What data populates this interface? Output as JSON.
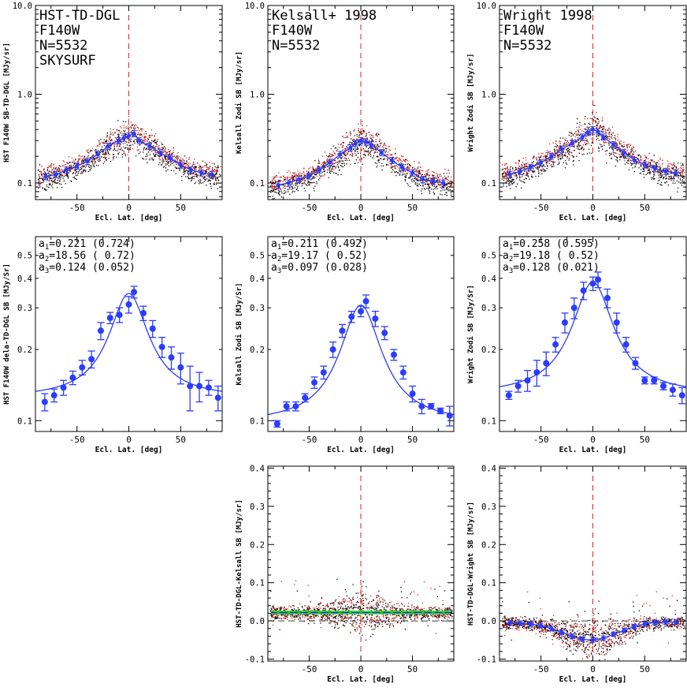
{
  "chart_data": [
    {
      "type": "scatter",
      "yscale": "log",
      "title_lines": [
        "HST-TD-DGL",
        "F140W",
        "N=5532",
        "SKYSURF"
      ],
      "xlabel": "Ecl. Lat. [deg]",
      "ylabel": "HST F140W SB-TD-DGL [MJy/sr]",
      "xlim": [
        -90,
        90
      ],
      "ylim": [
        0.065,
        10
      ],
      "xticks": [
        -50,
        0,
        50
      ],
      "yticks": [
        0.1,
        1.0,
        10.0
      ],
      "ytick_labels": [
        "0.1",
        "1.0",
        "10.0"
      ],
      "binned": {
        "x": [
          -80,
          -70,
          -60,
          -50,
          -40,
          -30,
          -20,
          -10,
          -5,
          0,
          5,
          10,
          20,
          30,
          40,
          50,
          60,
          70,
          80
        ],
        "y": [
          0.118,
          0.125,
          0.14,
          0.155,
          0.175,
          0.21,
          0.26,
          0.3,
          0.32,
          0.34,
          0.36,
          0.3,
          0.26,
          0.22,
          0.19,
          0.16,
          0.14,
          0.13,
          0.125
        ]
      },
      "zero_line": {
        "x": 0
      }
    },
    {
      "type": "scatter",
      "yscale": "log",
      "title_lines": [
        "Kelsall+ 1998",
        "F140W",
        "N=5532"
      ],
      "xlabel": "Ecl. Lat. [deg]",
      "ylabel": "Kelsall Zodi SB [MJy/sr]",
      "xlim": [
        -90,
        90
      ],
      "ylim": [
        0.065,
        10
      ],
      "xticks": [
        -50,
        0,
        50
      ],
      "yticks": [
        0.1,
        1.0,
        10.0
      ],
      "ytick_labels": [
        "0.1",
        "1.0",
        "10.0"
      ],
      "binned": {
        "x": [
          -80,
          -70,
          -60,
          -50,
          -40,
          -30,
          -20,
          -10,
          -5,
          0,
          5,
          10,
          20,
          30,
          40,
          50,
          60,
          70,
          80
        ],
        "y": [
          0.095,
          0.1,
          0.11,
          0.12,
          0.14,
          0.17,
          0.21,
          0.25,
          0.28,
          0.3,
          0.29,
          0.27,
          0.22,
          0.18,
          0.15,
          0.13,
          0.11,
          0.105,
          0.1
        ]
      },
      "zero_line": {
        "x": 0
      }
    },
    {
      "type": "scatter",
      "yscale": "log",
      "title_lines": [
        "Wright 1998",
        "F140W",
        "N=5532"
      ],
      "xlabel": "Ecl. Lat. [deg]",
      "ylabel": "Wright Zodi SB [MJy/sr]",
      "xlim": [
        -90,
        90
      ],
      "ylim": [
        0.065,
        10
      ],
      "xticks": [
        -50,
        0,
        50
      ],
      "yticks": [
        0.1,
        1.0,
        10.0
      ],
      "ytick_labels": [
        "0.1",
        "1.0",
        "10.0"
      ],
      "binned": {
        "x": [
          -80,
          -70,
          -60,
          -50,
          -40,
          -30,
          -20,
          -10,
          -5,
          0,
          5,
          10,
          20,
          30,
          40,
          50,
          60,
          70,
          80
        ],
        "y": [
          0.125,
          0.135,
          0.15,
          0.17,
          0.2,
          0.24,
          0.28,
          0.33,
          0.37,
          0.4,
          0.38,
          0.33,
          0.27,
          0.22,
          0.18,
          0.16,
          0.145,
          0.135,
          0.13
        ]
      },
      "zero_line": {
        "x": 0
      }
    },
    {
      "type": "scatter",
      "yscale": "log",
      "fit_labels": [
        {
          "sym": "a",
          "sub": "1",
          "text": "=0.221 (0.724)"
        },
        {
          "sym": "a",
          "sub": "2",
          "text": "=18.56 ( 0.72)"
        },
        {
          "sym": "a",
          "sub": "3",
          "text": "=0.124 (0.052)"
        }
      ],
      "fit": {
        "a1": 0.221,
        "a2": 18.56,
        "a3": 0.124
      },
      "xlabel": "Ecl. Lat. [deg]",
      "ylabel": "HST F140W dela-TD-DGL SB [MJy/Sr]",
      "xlim": [
        -90,
        90
      ],
      "ylim": [
        0.09,
        0.6
      ],
      "xticks": [
        -50,
        0,
        50
      ],
      "yticks": [
        0.1,
        0.2,
        0.3,
        0.4,
        0.5
      ],
      "ytick_labels": [
        "0.1",
        "0.2",
        "0.3",
        "0.4",
        "0.5"
      ],
      "points": {
        "x": [
          -81,
          -72,
          -63,
          -54,
          -45,
          -36,
          -27,
          -18,
          -9,
          0,
          5,
          14,
          23,
          32,
          41,
          50,
          59,
          68,
          77,
          86
        ],
        "y": [
          0.12,
          0.128,
          0.138,
          0.152,
          0.168,
          0.182,
          0.24,
          0.272,
          0.28,
          0.31,
          0.35,
          0.285,
          0.245,
          0.205,
          0.185,
          0.168,
          0.14,
          0.14,
          0.138,
          0.125
        ],
        "err": [
          0.01,
          0.008,
          0.01,
          0.01,
          0.012,
          0.015,
          0.02,
          0.015,
          0.02,
          0.025,
          0.02,
          0.02,
          0.02,
          0.02,
          0.02,
          0.025,
          0.03,
          0.02,
          0.01,
          0.015
        ]
      }
    },
    {
      "type": "scatter",
      "yscale": "log",
      "fit_labels": [
        {
          "sym": "a",
          "sub": "1",
          "text": "=0.211 (0.492)"
        },
        {
          "sym": "a",
          "sub": "2",
          "text": "=19.17 ( 0.52)"
        },
        {
          "sym": "a",
          "sub": "3",
          "text": "=0.097 (0.028)"
        }
      ],
      "fit": {
        "a1": 0.211,
        "a2": 19.17,
        "a3": 0.097
      },
      "xlabel": "Ecl. Lat. [deg]",
      "ylabel": "Kelsall Zodi SB [MJy/Sr]",
      "xlim": [
        -90,
        90
      ],
      "ylim": [
        0.09,
        0.6
      ],
      "xticks": [
        -50,
        0,
        50
      ],
      "yticks": [
        0.1,
        0.2,
        0.3,
        0.4,
        0.5
      ],
      "ytick_labels": [
        "0.1",
        "0.2",
        "0.3",
        "0.4",
        "0.5"
      ],
      "points": {
        "x": [
          -81,
          -72,
          -63,
          -54,
          -45,
          -36,
          -27,
          -18,
          -9,
          0,
          5,
          14,
          23,
          32,
          41,
          50,
          59,
          68,
          77,
          86
        ],
        "y": [
          0.097,
          0.115,
          0.115,
          0.125,
          0.145,
          0.16,
          0.2,
          0.24,
          0.275,
          0.29,
          0.32,
          0.27,
          0.235,
          0.19,
          0.16,
          0.13,
          0.115,
          0.115,
          0.11,
          0.105
        ],
        "err": [
          0.003,
          0.005,
          0.005,
          0.005,
          0.008,
          0.01,
          0.015,
          0.015,
          0.015,
          0.015,
          0.02,
          0.02,
          0.015,
          0.01,
          0.01,
          0.01,
          0.008,
          0.003,
          0.003,
          0.01
        ]
      }
    },
    {
      "type": "scatter",
      "yscale": "log",
      "fit_labels": [
        {
          "sym": "a",
          "sub": "1",
          "text": "=0.258 (0.595)"
        },
        {
          "sym": "a",
          "sub": "2",
          "text": "=19.18 ( 0.52)"
        },
        {
          "sym": "a",
          "sub": "3",
          "text": "=0.128 (0.021)"
        }
      ],
      "fit": {
        "a1": 0.258,
        "a2": 19.18,
        "a3": 0.128
      },
      "xlabel": "Ecl. Lat. [deg]",
      "ylabel": "Wright Zodi SB [MJy/Sr]",
      "xlim": [
        -90,
        90
      ],
      "ylim": [
        0.09,
        0.6
      ],
      "xticks": [
        -50,
        0,
        50
      ],
      "yticks": [
        0.1,
        0.2,
        0.3,
        0.4,
        0.5
      ],
      "ytick_labels": [
        "0.1",
        "0.2",
        "0.3",
        "0.4",
        "0.5"
      ],
      "points": {
        "x": [
          -81,
          -72,
          -63,
          -54,
          -45,
          -36,
          -27,
          -18,
          -9,
          0,
          5,
          14,
          23,
          32,
          41,
          50,
          59,
          68,
          77,
          86
        ],
        "y": [
          0.128,
          0.14,
          0.148,
          0.16,
          0.175,
          0.21,
          0.26,
          0.3,
          0.355,
          0.38,
          0.395,
          0.33,
          0.26,
          0.21,
          0.175,
          0.148,
          0.148,
          0.14,
          0.135,
          0.128
        ],
        "err": [
          0.005,
          0.008,
          0.015,
          0.02,
          0.02,
          0.015,
          0.025,
          0.03,
          0.03,
          0.025,
          0.03,
          0.03,
          0.025,
          0.015,
          0.01,
          0.005,
          0.005,
          0.005,
          0.008,
          0.01
        ]
      }
    },
    {
      "type": "scatter",
      "xlabel": "Ecl. Lat. [deg]",
      "ylabel": "HST-TD-DGL-Kelsall SB [MJy/sr]",
      "xlim": [
        -90,
        90
      ],
      "ylim": [
        -0.105,
        0.405
      ],
      "xticks": [
        -50,
        0,
        50
      ],
      "yticks": [
        -0.1,
        0.0,
        0.1,
        0.2,
        0.3,
        0.4
      ],
      "ytick_labels": [
        "-0.1",
        "0.0",
        "0.1",
        "0.2",
        "0.3",
        "0.4"
      ],
      "band": {
        "y": 0.022,
        "green_halfwidth": 0.005
      },
      "points": {
        "x": [
          -80,
          -70,
          -60,
          -50,
          -40,
          -30,
          -20,
          -10,
          0,
          10,
          20,
          30,
          40,
          50,
          60,
          70,
          80
        ],
        "y": [
          0.022,
          0.022,
          0.022,
          0.022,
          0.022,
          0.022,
          0.022,
          0.022,
          0.022,
          0.022,
          0.022,
          0.022,
          0.022,
          0.022,
          0.022,
          0.022,
          0.022
        ]
      },
      "zero_line": {
        "x": 0,
        "y": 0
      }
    },
    {
      "type": "scatter",
      "xlabel": "Ecl. Lat. [deg]",
      "ylabel": "HST-TD-DGL-Wright SB [MJy/sr]",
      "xlim": [
        -90,
        90
      ],
      "ylim": [
        -0.105,
        0.405
      ],
      "xticks": [
        -50,
        0,
        50
      ],
      "yticks": [
        -0.1,
        0.0,
        0.1,
        0.2,
        0.3,
        0.4
      ],
      "ytick_labels": [
        "-0.1",
        "0.0",
        "0.1",
        "0.2",
        "0.3",
        "0.4"
      ],
      "binned": {
        "x": [
          -80,
          -70,
          -60,
          -50,
          -40,
          -30,
          -20,
          -10,
          0,
          10,
          20,
          30,
          40,
          50,
          60,
          70,
          80
        ],
        "y": [
          -0.005,
          -0.006,
          -0.008,
          -0.012,
          -0.02,
          -0.03,
          -0.04,
          -0.048,
          -0.05,
          -0.045,
          -0.035,
          -0.025,
          -0.015,
          -0.008,
          -0.004,
          -0.003,
          -0.003
        ]
      },
      "zero_line": {
        "x": 0,
        "y": 0
      }
    }
  ]
}
